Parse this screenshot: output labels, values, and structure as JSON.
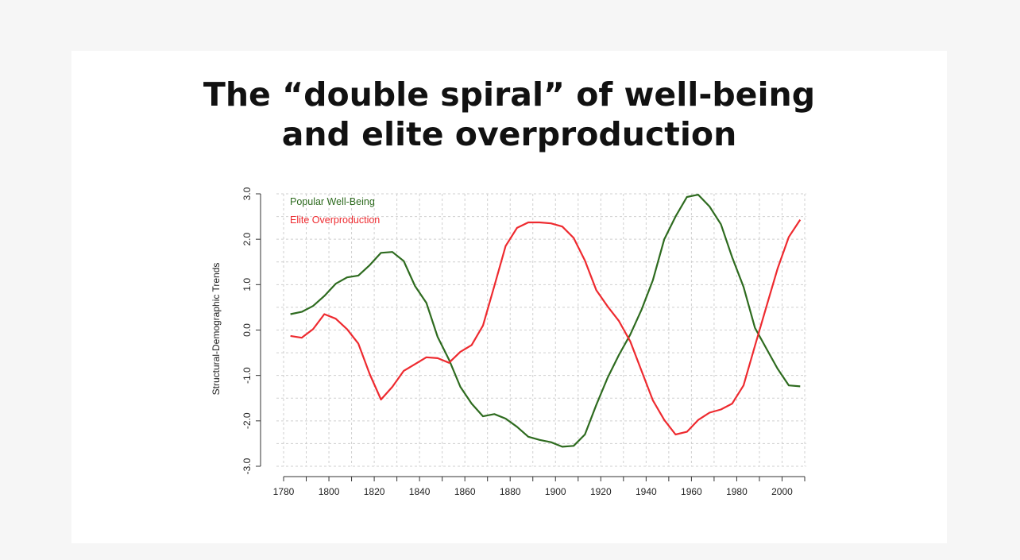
{
  "slide": {
    "title_line1": "The “double spiral” of well-being",
    "title_line2": "and elite overproduction"
  },
  "chart_data": {
    "type": "line",
    "title": "The “double spiral” of well-being and elite overproduction",
    "xlabel": "",
    "ylabel": "Structural-Demographic Trends",
    "xlim": [
      1780,
      2010
    ],
    "ylim": [
      -3.0,
      3.0
    ],
    "x_ticks": [
      1780,
      1800,
      1820,
      1840,
      1860,
      1880,
      1900,
      1920,
      1940,
      1960,
      1980,
      2000
    ],
    "x_tick_labels": [
      "1780",
      "1800",
      "1820",
      "1840",
      "1860",
      "1880",
      "1900",
      "1920",
      "1940",
      "1960",
      "1980",
      "2000"
    ],
    "y_ticks": [
      -3,
      -2,
      -1,
      0,
      1,
      2,
      3
    ],
    "y_tick_labels": [
      "-3.0",
      "-2.0",
      "-1.0",
      "0.0",
      "1.0",
      "2.0",
      "3.0"
    ],
    "grid": true,
    "legend_position": "top-left",
    "series": [
      {
        "name": "Popular Well-Being",
        "color": "#2e6b1f",
        "x": [
          1783,
          1788,
          1793,
          1798,
          1803,
          1808,
          1813,
          1818,
          1823,
          1828,
          1833,
          1838,
          1843,
          1848,
          1853,
          1858,
          1863,
          1868,
          1873,
          1878,
          1883,
          1888,
          1893,
          1898,
          1903,
          1908,
          1913,
          1918,
          1923,
          1928,
          1933,
          1938,
          1943,
          1948,
          1953,
          1958,
          1963,
          1968,
          1973,
          1978,
          1983,
          1988,
          1993,
          1998,
          2003,
          2008
        ],
        "y": [
          0.35,
          0.4,
          0.53,
          0.75,
          1.02,
          1.16,
          1.2,
          1.43,
          1.7,
          1.72,
          1.52,
          0.97,
          0.6,
          -0.15,
          -0.65,
          -1.25,
          -1.62,
          -1.9,
          -1.85,
          -1.95,
          -2.13,
          -2.35,
          -2.42,
          -2.47,
          -2.57,
          -2.55,
          -2.3,
          -1.65,
          -1.05,
          -0.55,
          -0.1,
          0.45,
          1.1,
          2.0,
          2.5,
          2.93,
          2.98,
          2.72,
          2.33,
          1.6,
          0.95,
          0.05,
          -0.4,
          -0.85,
          -1.22,
          -1.24
        ]
      },
      {
        "name": "Elite Overproduction",
        "color": "#ee2a2f",
        "x": [
          1783,
          1788,
          1793,
          1798,
          1803,
          1808,
          1813,
          1818,
          1823,
          1828,
          1833,
          1838,
          1843,
          1848,
          1853,
          1858,
          1863,
          1868,
          1873,
          1878,
          1883,
          1888,
          1893,
          1898,
          1903,
          1908,
          1913,
          1918,
          1923,
          1928,
          1933,
          1938,
          1943,
          1948,
          1953,
          1958,
          1963,
          1968,
          1973,
          1978,
          1983,
          1988,
          1993,
          1998,
          2003,
          2008
        ],
        "y": [
          -0.13,
          -0.17,
          0.02,
          0.35,
          0.25,
          0.02,
          -0.3,
          -0.97,
          -1.53,
          -1.25,
          -0.9,
          -0.75,
          -0.6,
          -0.62,
          -0.72,
          -0.48,
          -0.33,
          0.1,
          0.97,
          1.85,
          2.25,
          2.37,
          2.37,
          2.35,
          2.28,
          2.03,
          1.53,
          0.88,
          0.52,
          0.2,
          -0.25,
          -0.9,
          -1.55,
          -1.98,
          -2.3,
          -2.24,
          -1.98,
          -1.82,
          -1.75,
          -1.62,
          -1.22,
          -0.35,
          0.5,
          1.35,
          2.05,
          2.43
        ]
      }
    ]
  }
}
